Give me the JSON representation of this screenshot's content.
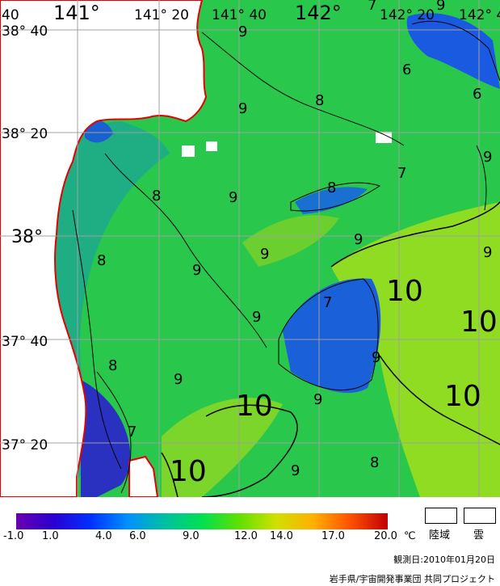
{
  "map": {
    "lon_labels": [
      {
        "text": "40"
      },
      {
        "text": "141°"
      },
      {
        "text": "141° 20"
      },
      {
        "text": "141° 40"
      },
      {
        "text": "142°"
      },
      {
        "text": "142° 20"
      },
      {
        "text": "142° 4"
      }
    ],
    "lat_labels": [
      {
        "text": "38° 40"
      },
      {
        "text": "38° 20"
      },
      {
        "text": "38°"
      },
      {
        "text": "37° 40"
      },
      {
        "text": "37° 20"
      }
    ],
    "contour_labels": [
      "9",
      "7",
      "9",
      "6",
      "9",
      "8",
      "6",
      "9",
      "8",
      "7",
      "9",
      "8",
      "9",
      "9",
      "8",
      "9",
      "7",
      "10",
      "9",
      "10",
      "9",
      "8",
      "9",
      "10",
      "10",
      "9",
      "9",
      "10",
      "7",
      "9",
      "8"
    ],
    "colors": {
      "land": "#ffffff",
      "coast": "#e60000",
      "sea_warm": "#9ae01a",
      "sea_mid": "#29c84c",
      "sea_cool": "#1aa89a",
      "sea_cold": "#1a5ae0",
      "grid": "#a0a0a0"
    }
  },
  "legend": {
    "unit": "℃",
    "tick_labels": [
      "-1.0",
      "1.0",
      "4.0",
      "6.0",
      "9.0",
      "12.0",
      "14.0",
      "17.0",
      "20.0"
    ],
    "land_label": "陸域",
    "cloud_label": "雲",
    "colors": {
      "stops": [
        "#6a00b0",
        "#2a00d0",
        "#0030ff",
        "#0090ff",
        "#00c0a0",
        "#00e050",
        "#60e000",
        "#d0e000",
        "#ffb000",
        "#ff5000",
        "#c00000"
      ]
    }
  },
  "date_text": "観測日:2010年01月20日",
  "credit_text": "岩手県/宇宙開発事業団 共同プロジェクト"
}
